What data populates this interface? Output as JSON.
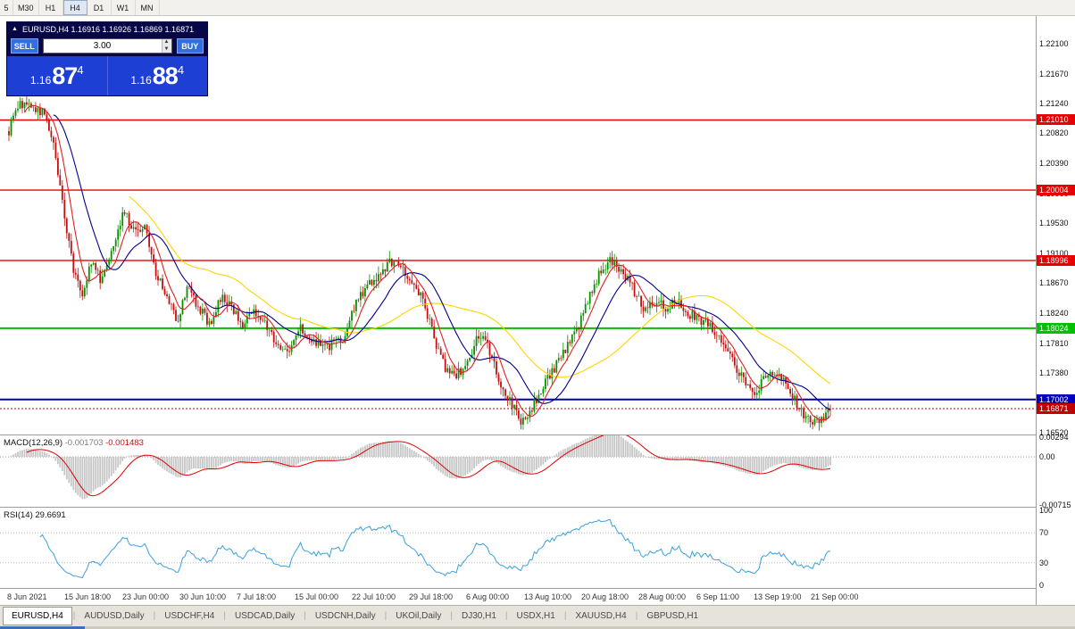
{
  "toolbar": {
    "timeframes": [
      "5",
      "M30",
      "H1",
      "H4",
      "D1",
      "W1",
      "MN"
    ],
    "active": "H4"
  },
  "trade_panel": {
    "header": "EURUSD,H4 1.16916 1.16926 1.16869 1.16871",
    "collapse_icon": "up-triangle",
    "sell_label": "SELL",
    "buy_label": "BUY",
    "volume": "3.00",
    "sell_price": {
      "prefix": "1.16",
      "big": "87",
      "sup": "4"
    },
    "buy_price": {
      "prefix": "1.16",
      "big": "88",
      "sup": "4"
    }
  },
  "macd_label": {
    "title": "MACD(12,26,9)",
    "main": "-0.001703",
    "signal": "-0.001483"
  },
  "rsi_label": {
    "title": "RSI(14)",
    "value": "29.6691"
  },
  "price_axis": {
    "ticks": [
      "1.22100",
      "1.21670",
      "1.21240",
      "1.20820",
      "1.20390",
      "1.19960",
      "1.19530",
      "1.19100",
      "1.18670",
      "1.18240",
      "1.17810",
      "1.17380",
      "1.16950",
      "1.16520"
    ]
  },
  "time_axis": {
    "labels": [
      "8 Jun 2021",
      "15 Jun 18:00",
      "23 Jun 00:00",
      "30 Jun 10:00",
      "7 Jul 18:00",
      "15 Jul 00:00",
      "22 Jul 10:00",
      "29 Jul 18:00",
      "6 Aug 00:00",
      "13 Aug 10:00",
      "20 Aug 18:00",
      "28 Aug 00:00",
      "6 Sep 11:00",
      "13 Sep 19:00",
      "21 Sep 00:00"
    ]
  },
  "tabs": {
    "items": [
      {
        "label": "EURUSD,H4",
        "active": true
      },
      {
        "label": "AUDUSD,Daily",
        "active": false
      },
      {
        "label": "USDCHF,H4",
        "active": false
      },
      {
        "label": "USDCAD,Daily",
        "active": false
      },
      {
        "label": "USDCNH,Daily",
        "active": false
      },
      {
        "label": "UKOil,Daily",
        "active": false
      },
      {
        "label": "DJ30,H1",
        "active": false
      },
      {
        "label": "USDX,H1",
        "active": false
      },
      {
        "label": "XAUUSD,H4",
        "active": false
      },
      {
        "label": "GBPUSD,H1",
        "active": false
      }
    ]
  },
  "chart_data": [
    {
      "type": "candlestick",
      "symbol": "EURUSD",
      "timeframe": "H4",
      "ohlc_current": {
        "open": 1.16916,
        "high": 1.16926,
        "low": 1.16869,
        "close": 1.16871
      },
      "price_range": [
        1.225,
        1.165
      ],
      "candle_count": 370,
      "colors": {
        "up": "#089000",
        "down": "#c01010"
      },
      "levels": [
        {
          "value": 1.2101,
          "label": "1.21010",
          "color": "#e80000",
          "width": 1.4
        },
        {
          "value": 1.20004,
          "label": "1.20004",
          "color": "#e80000",
          "width": 1.4
        },
        {
          "value": 1.18996,
          "label": "1.18996",
          "color": "#e80000",
          "width": 1.4
        },
        {
          "value": 1.18024,
          "label": "1.18024",
          "color": "#00c000",
          "width": 2
        },
        {
          "value": 1.17002,
          "label": "1.17002",
          "color": "#0000be",
          "width": 2
        }
      ],
      "current_price": {
        "value": 1.16871,
        "label": "1.16871",
        "color": "#c00000"
      },
      "moving_averages": [
        {
          "period": 55,
          "color": "#ffd400"
        },
        {
          "period": 21,
          "color": "#00008b"
        },
        {
          "period": 8,
          "color": "#e02020"
        }
      ],
      "price_path": [
        [
          0.0,
          1.2085
        ],
        [
          0.012,
          1.2125
        ],
        [
          0.03,
          1.2118
        ],
        [
          0.045,
          1.2108
        ],
        [
          0.055,
          1.206
        ],
        [
          0.068,
          1.196
        ],
        [
          0.08,
          1.1878
        ],
        [
          0.09,
          1.1852
        ],
        [
          0.1,
          1.19
        ],
        [
          0.112,
          1.1872
        ],
        [
          0.125,
          1.1918
        ],
        [
          0.14,
          1.1972
        ],
        [
          0.152,
          1.194
        ],
        [
          0.165,
          1.1948
        ],
        [
          0.178,
          1.1885
        ],
        [
          0.19,
          1.1852
        ],
        [
          0.205,
          1.1815
        ],
        [
          0.218,
          1.1862
        ],
        [
          0.232,
          1.183
        ],
        [
          0.245,
          1.1808
        ],
        [
          0.258,
          1.1845
        ],
        [
          0.27,
          1.1838
        ],
        [
          0.285,
          1.18
        ],
        [
          0.298,
          1.1832
        ],
        [
          0.312,
          1.1808
        ],
        [
          0.325,
          1.1782
        ],
        [
          0.34,
          1.1768
        ],
        [
          0.355,
          1.1802
        ],
        [
          0.368,
          1.1788
        ],
        [
          0.382,
          1.1772
        ],
        [
          0.395,
          1.178
        ],
        [
          0.408,
          1.1788
        ],
        [
          0.422,
          1.184
        ],
        [
          0.438,
          1.1868
        ],
        [
          0.452,
          1.188
        ],
        [
          0.465,
          1.1898
        ],
        [
          0.478,
          1.1888
        ],
        [
          0.492,
          1.1868
        ],
        [
          0.505,
          1.1838
        ],
        [
          0.518,
          1.1788
        ],
        [
          0.532,
          1.1742
        ],
        [
          0.545,
          1.1736
        ],
        [
          0.558,
          1.1752
        ],
        [
          0.572,
          1.1792
        ],
        [
          0.585,
          1.1772
        ],
        [
          0.598,
          1.1722
        ],
        [
          0.612,
          1.1692
        ],
        [
          0.625,
          1.1668
        ],
        [
          0.638,
          1.1692
        ],
        [
          0.652,
          1.1722
        ],
        [
          0.665,
          1.1748
        ],
        [
          0.678,
          1.1772
        ],
        [
          0.692,
          1.1798
        ],
        [
          0.705,
          1.1845
        ],
        [
          0.718,
          1.1878
        ],
        [
          0.732,
          1.1902
        ],
        [
          0.745,
          1.1888
        ],
        [
          0.758,
          1.1862
        ],
        [
          0.772,
          1.1832
        ],
        [
          0.785,
          1.1842
        ],
        [
          0.798,
          1.1832
        ],
        [
          0.812,
          1.1842
        ],
        [
          0.825,
          1.1825
        ],
        [
          0.838,
          1.1818
        ],
        [
          0.852,
          1.1808
        ],
        [
          0.865,
          1.1788
        ],
        [
          0.878,
          1.1762
        ],
        [
          0.892,
          1.1732
        ],
        [
          0.905,
          1.1705
        ],
        [
          0.918,
          1.1728
        ],
        [
          0.932,
          1.1742
        ],
        [
          0.945,
          1.1722
        ],
        [
          0.958,
          1.1698
        ],
        [
          0.972,
          1.1672
        ],
        [
          0.985,
          1.1668
        ],
        [
          1.0,
          1.1687
        ]
      ]
    },
    {
      "type": "macd-histogram",
      "title": "MACD(12,26,9)",
      "params": [
        12,
        26,
        9
      ],
      "value_main": -0.001703,
      "value_signal": -0.001483,
      "range": [
        -0.00715,
        0.00294
      ],
      "axis_labels": [
        [
          "0.00294",
          0.00294
        ],
        [
          "0.00",
          0
        ],
        [
          "-0.00715",
          -0.00715
        ]
      ],
      "histogram_color": "#c6c6c6",
      "signal_color": "#e00000"
    },
    {
      "type": "line",
      "title": "RSI(14)",
      "value": 29.6691,
      "range": [
        0,
        100
      ],
      "levels": [
        70,
        30
      ],
      "axis_labels": [
        [
          "100",
          100
        ],
        [
          "70",
          70
        ],
        [
          "30",
          30
        ],
        [
          "0",
          0
        ]
      ],
      "color": "#3aa0dc"
    }
  ]
}
